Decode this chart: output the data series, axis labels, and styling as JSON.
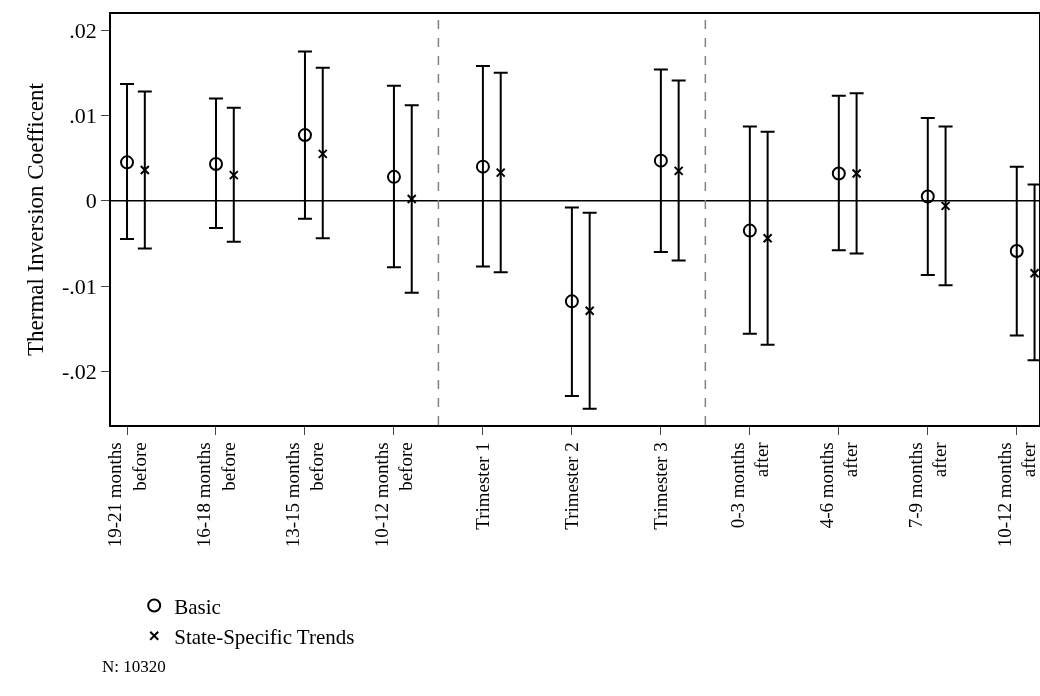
{
  "chart_data": {
    "type": "scatter",
    "ylabel": "Thermal Inversion Coefficent",
    "categories": [
      "19-21 months before",
      "16-18 months before",
      "13-15 months before",
      "10-12 months before",
      "Trimester 1",
      "Trimester 2",
      "Trimester 3",
      "0-3 months after",
      "4-6 months after",
      "7-9 months after",
      "10-12 months after"
    ],
    "series": [
      {
        "name": "Basic",
        "color": "#000000",
        "marker": "circle",
        "values": [
          0.0045,
          0.0043,
          0.0077,
          0.0028,
          0.004,
          -0.0118,
          0.0047,
          -0.0035,
          0.0032,
          0.0005,
          -0.0059
        ],
        "errors": [
          [
            -0.0045,
            0.0137
          ],
          [
            -0.0032,
            0.012
          ],
          [
            -0.0021,
            0.0175
          ],
          [
            -0.0078,
            0.0135
          ],
          [
            -0.0077,
            0.0158
          ],
          [
            -0.0229,
            -0.0008
          ],
          [
            -0.006,
            0.0154
          ],
          [
            -0.0156,
            0.0087
          ],
          [
            -0.0058,
            0.0123
          ],
          [
            -0.0087,
            0.0097
          ],
          [
            -0.0158,
            0.004
          ]
        ]
      },
      {
        "name": "State-Specific Trends",
        "color": "#000000",
        "marker": "cross",
        "values": [
          0.0036,
          0.003,
          0.0055,
          0.0002,
          0.0033,
          -0.0129,
          0.0035,
          -0.0044,
          0.0032,
          -0.0006,
          -0.0085
        ],
        "errors": [
          [
            -0.0056,
            0.0128
          ],
          [
            -0.0048,
            0.0109
          ],
          [
            -0.0044,
            0.0156
          ],
          [
            -0.0108,
            0.0112
          ],
          [
            -0.0084,
            0.015
          ],
          [
            -0.0244,
            -0.0014
          ],
          [
            -0.007,
            0.0141
          ],
          [
            -0.0169,
            0.0081
          ],
          [
            -0.0062,
            0.0126
          ],
          [
            -0.0099,
            0.0087
          ],
          [
            -0.0187,
            0.0019
          ]
        ]
      }
    ],
    "ylim": [
      -0.0263,
      0.0219
    ],
    "yticks": [
      {
        "value": 0.02,
        "label": ".02"
      },
      {
        "value": 0.01,
        "label": ".01"
      },
      0,
      {
        "value": -0.01,
        "label": "-.01"
      },
      {
        "value": -0.02,
        "label": "-.02"
      }
    ],
    "ref_lines": [
      {
        "axis": "y",
        "value": 0,
        "color": "#000000",
        "line_style": "solid"
      }
    ],
    "grid": false,
    "legend": "bottom left",
    "annotations": [
      "N: 10320"
    ]
  }
}
